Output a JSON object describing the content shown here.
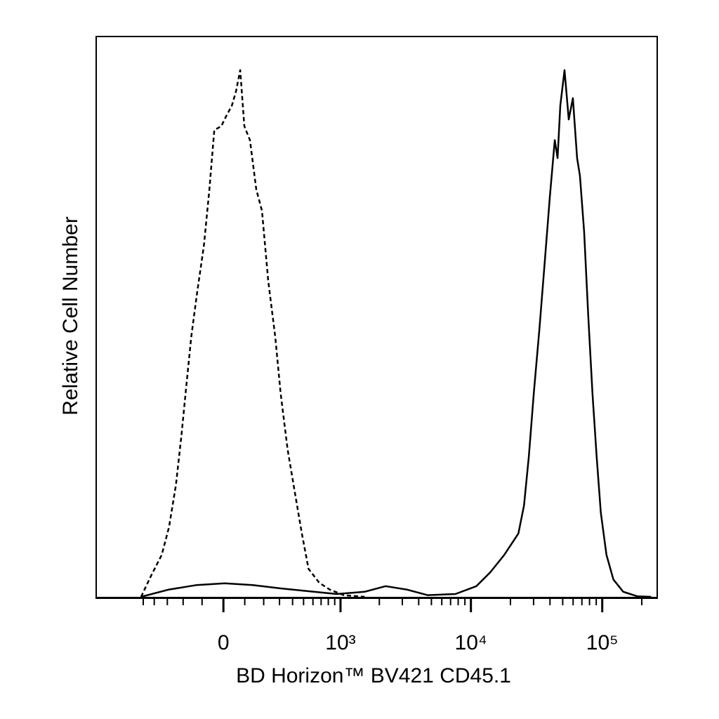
{
  "chart_data": {
    "type": "line",
    "x_label": "BD Horizon™ BV421 CD45.1",
    "y_label": "Relative Cell Number",
    "x_scale": "biexponential",
    "xlim": [
      -1200,
      262144
    ],
    "ylim": [
      0,
      100
    ],
    "xticks": [
      0,
      {
        "value": 1000,
        "label": "10³"
      },
      {
        "value": 10000,
        "label": "10⁴"
      },
      {
        "value": 100000,
        "label": "10⁵"
      }
    ],
    "xminorticks": [
      -500,
      -400,
      -300,
      -200,
      -100,
      100,
      200,
      300,
      400,
      500,
      600,
      700,
      800,
      900,
      2000,
      3000,
      4000,
      5000,
      6000,
      7000,
      8000,
      9000,
      20000,
      30000,
      40000,
      50000,
      60000,
      70000,
      80000,
      90000,
      200000
    ],
    "grid": false,
    "series": [
      {
        "color": "#000000",
        "dashed": true,
        "x": [
          -522,
          -426,
          -340,
          -288,
          -243,
          -210,
          -182,
          -155,
          -126,
          -91,
          -65,
          -42,
          -10,
          13,
          39,
          58,
          78,
          98,
          126,
          159,
          190,
          227,
          271,
          308,
          360,
          418,
          483,
          551,
          676,
          820,
          1060,
          1540
        ],
        "values": [
          0,
          3.8,
          7.5,
          12.5,
          20,
          28.8,
          37.6,
          46.4,
          53.9,
          62.7,
          72.7,
          83.3,
          84,
          85.8,
          87.7,
          90.2,
          94,
          84,
          81.5,
          72.7,
          68.9,
          56.4,
          46.4,
          36.3,
          26.3,
          18.8,
          11.3,
          5,
          2.5,
          1.3,
          0.3,
          0
        ]
      },
      {
        "color": "#000000",
        "dashed": false,
        "x": [
          -522,
          -288,
          -126,
          6,
          140,
          308,
          551,
          932,
          1540,
          2234,
          3231,
          4672,
          7621,
          11014,
          14068,
          17983,
          22994,
          25369,
          27614,
          30093,
          33199,
          36618,
          39907,
          43483,
          45675,
          47972,
          51626,
          55567,
          59769,
          64337,
          67599,
          72767,
          78274,
          84251,
          90645,
          97562,
          107636,
          121626,
          144464,
          184527,
          235944
        ],
        "values": [
          0,
          1.3,
          2.1,
          2.4,
          2.1,
          1.5,
          1.0,
          0.5,
          0.9,
          1.9,
          1.3,
          0.3,
          0.5,
          1.9,
          4.4,
          7.5,
          11.3,
          16.3,
          25.1,
          36.3,
          47.6,
          60.2,
          71.4,
          81.5,
          78.3,
          87.7,
          94,
          85.2,
          89,
          78.3,
          75.2,
          65.2,
          50.1,
          36.3,
          25.1,
          15,
          7.5,
          3.1,
          0.9,
          0.1,
          0
        ]
      }
    ]
  }
}
